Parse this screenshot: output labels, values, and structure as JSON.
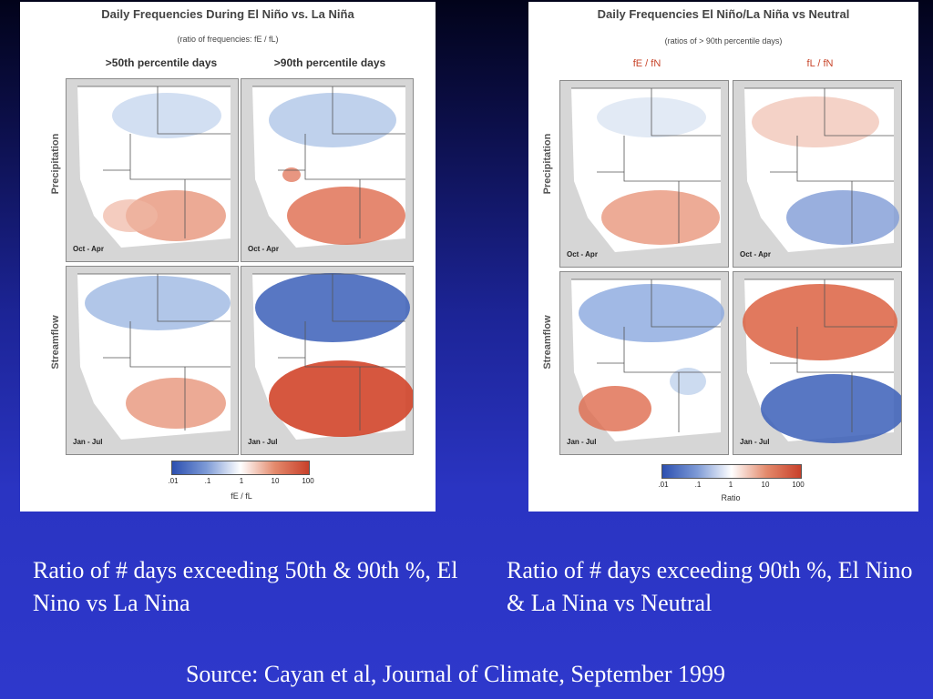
{
  "left_figure": {
    "title": "Daily Frequencies During El Niño vs. La Niña",
    "subtitle": "(ratio of frequencies: fE / fL)",
    "col_headers": [
      ">50th percentile days",
      ">90th percentile days"
    ],
    "row_labels": [
      "Precipitation",
      "Streamflow"
    ],
    "seasons": [
      "Oct - Apr",
      "Oct - Apr",
      "Jan - Jul",
      "Jan - Jul"
    ],
    "colorbar_ticks": [
      ".01",
      ".1",
      "1",
      "10",
      "100"
    ],
    "colorbar_label": "fE / fL"
  },
  "right_figure": {
    "title": "Daily Frequencies El Niño/La Niña vs Neutral",
    "subtitle": "(ratios of > 90th percentile days)",
    "col_headers": [
      "fE / fN",
      "fL / fN"
    ],
    "row_labels": [
      "Precipitation",
      "Streamflow"
    ],
    "seasons": [
      "Oct - Apr",
      "Oct - Apr",
      "Jan - Jul",
      "Jan - Jul"
    ],
    "colorbar_ticks": [
      ".01",
      ".1",
      "1",
      "10",
      "100"
    ],
    "colorbar_label": "Ratio"
  },
  "colors": {
    "red": "#d9573a",
    "blue": "#3b5fb8",
    "white": "#ffffff"
  },
  "captions": {
    "left": "Ratio of # days exceeding 50th & 90th %, El Nino vs La Nina",
    "right": "Ratio of # days exceeding 90th %, El Nino & La Nina vs Neutral"
  },
  "source": "Source: Cayan et al, Journal of Climate, September 1999"
}
